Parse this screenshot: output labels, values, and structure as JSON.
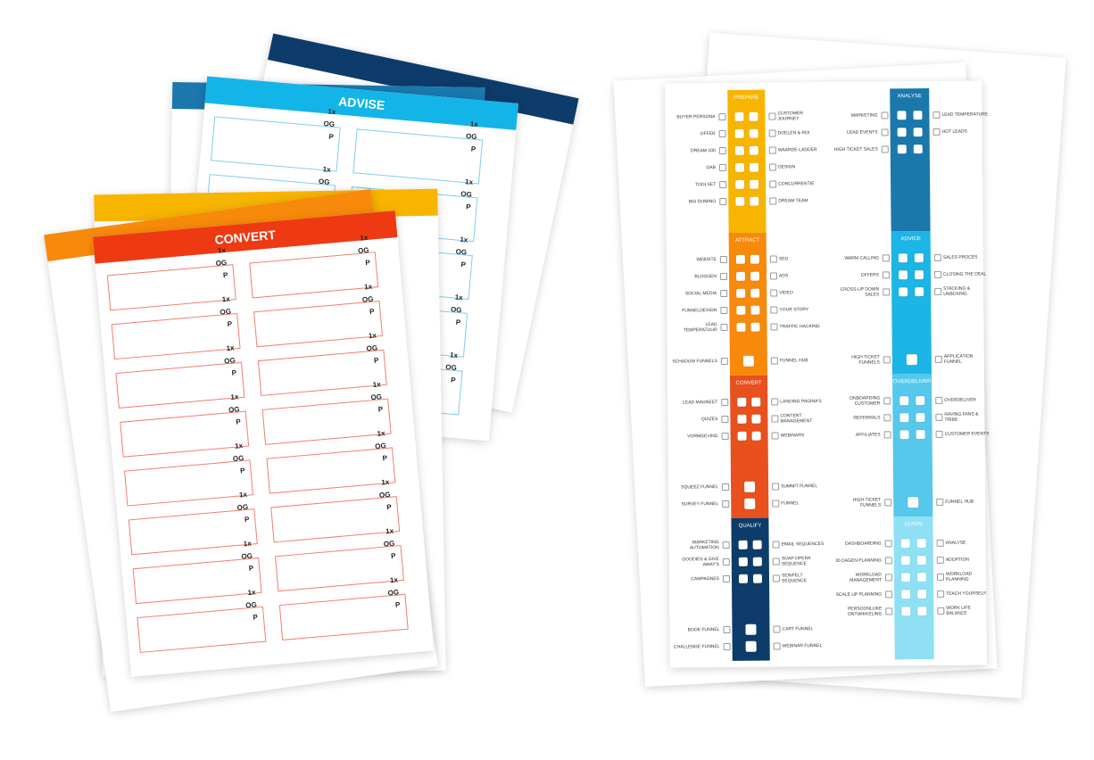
{
  "left_stack": {
    "advise_title": "ADVISE",
    "convert_title": "CONVERT",
    "box_labels": [
      "1x",
      "OG",
      "P"
    ]
  },
  "worksheet": {
    "columns": [
      [
        {
          "title": "PREPARE",
          "color": "#f7b500",
          "items": [
            [
              "BUYER PERSONA",
              "CUSTOMER JOURNEY"
            ],
            [
              "OFFER",
              "DOELEN & ROI"
            ],
            [
              "DREAM 100",
              "WAARDE-LADDER"
            ],
            [
              "OAB",
              "DESIGN"
            ],
            [
              "TOOLSET",
              "CONCURRENTIE"
            ],
            [
              "BIG DOMINO",
              "DREAM TEAM"
            ]
          ],
          "funnels": []
        },
        {
          "title": "ATTRACT",
          "color": "#f78a0a",
          "items": [
            [
              "WEBSITE",
              "SEO"
            ],
            [
              "BLOGGEN",
              "ADS"
            ],
            [
              "SOCIAL MEDIA",
              "VIDEO"
            ],
            [
              "FUNNELDESIGN",
              "YOUR STORY"
            ],
            [
              "LEAD TEMPERATUUR",
              "TRAFFIC HACKING"
            ]
          ],
          "funnels": [
            [
              "SCHADUW FUNNELS",
              "FUNNEL HUB"
            ]
          ]
        },
        {
          "title": "CONVERT",
          "color": "#e8501e",
          "items": [
            [
              "LEAD MAGNEET",
              "LANDING PAGINA'S"
            ],
            [
              "QUIZES",
              "CONTENT MANAGEMENT"
            ],
            [
              "VORMGEVING",
              "WEBINARS"
            ]
          ],
          "funnels": [
            [
              "SQUEEZ FUNNEL",
              "SUMMIT FUNNEL"
            ],
            [
              "SURVEY FUNNEL",
              "FUNNEL"
            ]
          ]
        },
        {
          "title": "QUALIFY",
          "color": "#0d3c6b",
          "items": [
            [
              "MARKETING AUTOMATION",
              "EMAIL SEQUENCES"
            ],
            [
              "GOODIES & GIVE AWAY'S",
              "SOAP OPERA SEQUENCE"
            ],
            [
              "CAMPAGNES",
              "SEINFELT SEQUENCE"
            ]
          ],
          "funnels": [
            [
              "BOOK FUNNEL",
              "CART FUNNEL"
            ],
            [
              "CHALLENGE FUNNEL",
              "WEBINAR FUNNEL"
            ]
          ]
        }
      ],
      [
        {
          "title": "ANALYSE",
          "color": "#1a78ad",
          "items": [
            [
              "MARKETING",
              "LEAD TEMPERATURE"
            ],
            [
              "LEAD EVENTS",
              "HOT LEADS"
            ],
            [
              "HIGH TICKET SALES"
            ]
          ],
          "funnels": []
        },
        {
          "title": "ADVICE",
          "color": "#1cb5e6",
          "items": [
            [
              "WARM CALLING",
              "SALES PROCES"
            ],
            [
              "OFFERS",
              "CLOSING THE DEAL"
            ],
            [
              "CROSS-UP DOWN SALES",
              "STACKING & UNBOXING"
            ]
          ],
          "funnels": [
            [
              "HIGH TICKET FUNNELS",
              "APPLICATION FUNNEL"
            ]
          ]
        },
        {
          "title": "OVERDELIVER",
          "color": "#55c8ec",
          "items": [
            [
              "ONBOARDING CUSTOMER",
              "OVERDELIVER"
            ],
            [
              "REFERRALS",
              "RAVING FANS & TRIBE"
            ],
            [
              "AFFILIATES",
              "CUSTOMER EVENTS"
            ]
          ],
          "funnels": [
            [
              "HIGH TICKET FUNNELS",
              "FUNNEL HUB"
            ]
          ]
        },
        {
          "title": "LEARN",
          "color": "#8fe0f5",
          "items": [
            [
              "DASHBOARDING",
              "ANALYSE"
            ],
            [
              "30 DAGEN PLANNING",
              "ADOPTION"
            ],
            [
              "WORKLOAD MANAGEMENT",
              "WORKLOAD PLANNING"
            ],
            [
              "SCALE UP PLANNING",
              "TEACH YOURSELF"
            ],
            [
              "PERSOONLIJKE ONTWIKKELING",
              "WORK LIFE BALANCE"
            ]
          ],
          "funnels": []
        }
      ]
    ]
  }
}
